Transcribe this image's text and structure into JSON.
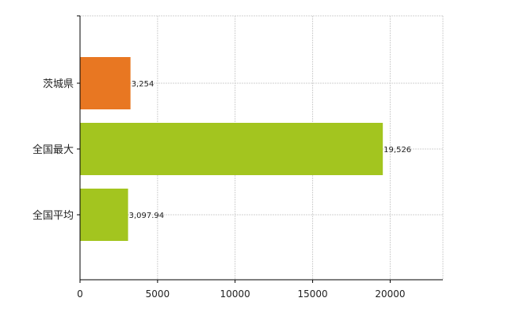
{
  "chart_data": {
    "type": "bar",
    "orientation": "horizontal",
    "categories": [
      "茨城県",
      "全国最大",
      "全国平均"
    ],
    "values": [
      3254,
      19526,
      3097.94
    ],
    "value_labels": [
      "3,254",
      "19,526",
      "3,097.94"
    ],
    "colors": [
      "#e87722",
      "#a3c51f",
      "#a3c51f"
    ],
    "xlim": [
      0,
      23400
    ],
    "xticks": [
      0,
      5000,
      10000,
      15000,
      20000
    ],
    "xtick_labels": [
      "0",
      "5000",
      "10000",
      "15000",
      "20000"
    ],
    "grid": true,
    "title": "",
    "xlabel": "",
    "ylabel": ""
  }
}
